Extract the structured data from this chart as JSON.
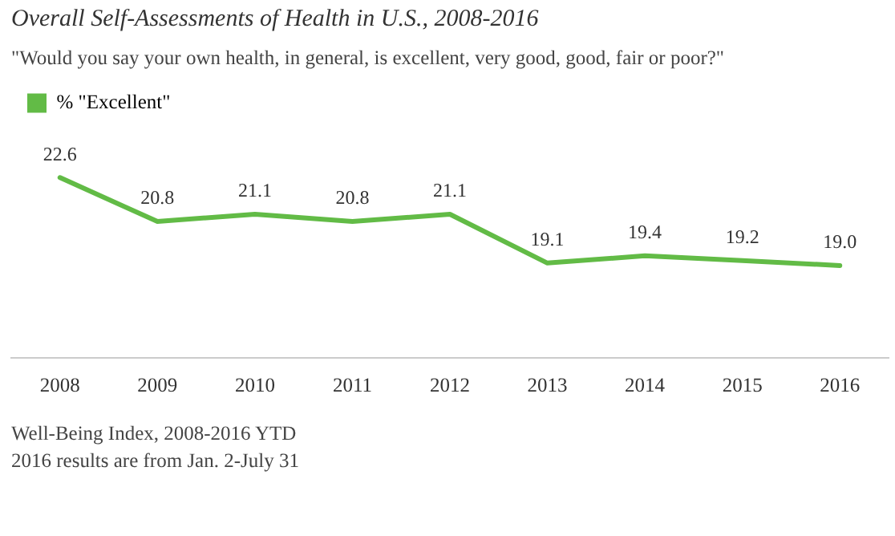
{
  "chart_data": {
    "type": "line",
    "title": "Overall Self-Assessments of Health in U.S., 2008-2016",
    "subtitle": "\"Would you say your own health, in general, is excellent, very good, good, fair or poor?\"",
    "categories": [
      "2008",
      "2009",
      "2010",
      "2011",
      "2012",
      "2013",
      "2014",
      "2015",
      "2016"
    ],
    "series": [
      {
        "name": "% \"Excellent\"",
        "color": "#62bb46",
        "values": [
          22.6,
          20.8,
          21.1,
          20.8,
          21.1,
          19.1,
          19.4,
          19.2,
          19.0
        ],
        "value_labels": [
          "22.6",
          "20.8",
          "21.1",
          "20.8",
          "21.1",
          "19.1",
          "19.4",
          "19.2",
          "19.0"
        ]
      }
    ],
    "legend": "top left",
    "grid": false,
    "marker": "none",
    "line_style": "solid",
    "annotations": [
      "Well-Being Index, 2008-2016 YTD",
      "2016 results are from Jan. 2-July 31"
    ]
  }
}
